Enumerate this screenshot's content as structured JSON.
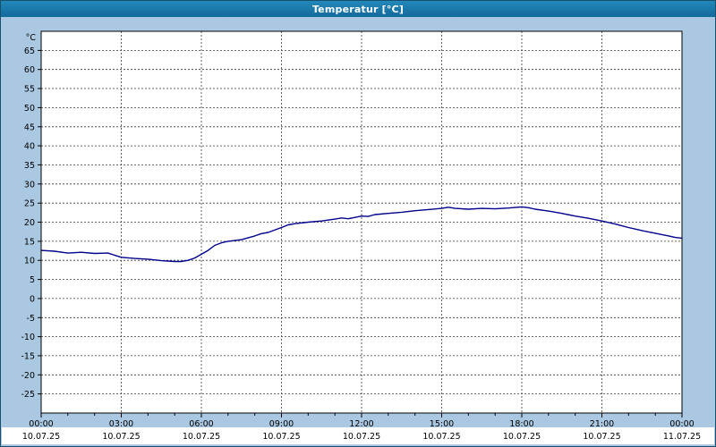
{
  "window": {
    "title": "Temperatur [°C]"
  },
  "chart_data": {
    "type": "line",
    "title": "Temperatur [°C]",
    "xlabel": "",
    "ylabel": "°C",
    "xlim": [
      0,
      24
    ],
    "ylim": [
      -30,
      70
    ],
    "ytick_from": -25,
    "ytick_to": 65,
    "ytick_step": 5,
    "grid": true,
    "legend": "none",
    "background": "#ffffff",
    "frame_color": "#aac8e2",
    "xticks": [
      {
        "h": 0,
        "time": "00:00",
        "date": "10.07.25"
      },
      {
        "h": 3,
        "time": "03:00",
        "date": "10.07.25"
      },
      {
        "h": 6,
        "time": "06:00",
        "date": "10.07.25"
      },
      {
        "h": 9,
        "time": "09:00",
        "date": "10.07.25"
      },
      {
        "h": 12,
        "time": "12:00",
        "date": "10.07.25"
      },
      {
        "h": 15,
        "time": "15:00",
        "date": "10.07.25"
      },
      {
        "h": 18,
        "time": "18:00",
        "date": "10.07.25"
      },
      {
        "h": 21,
        "time": "21:00",
        "date": "10.07.25"
      },
      {
        "h": 24,
        "time": "00:00",
        "date": "11.07.25"
      }
    ],
    "series": [
      {
        "name": "Temperatur",
        "color": "#00008b",
        "x": [
          0,
          0.5,
          1,
          1.5,
          2,
          2.5,
          3,
          3.5,
          4,
          4.5,
          5,
          5.25,
          5.5,
          5.75,
          6,
          6.25,
          6.5,
          6.75,
          7,
          7.5,
          8,
          8.25,
          8.5,
          9,
          9.25,
          9.5,
          10,
          10.5,
          11,
          11.25,
          11.5,
          12,
          12.25,
          12.5,
          13,
          13.5,
          14,
          14.5,
          15,
          15.25,
          15.5,
          16,
          16.5,
          17,
          17.5,
          18,
          18.25,
          18.5,
          19,
          19.5,
          20,
          20.5,
          21,
          21.5,
          22,
          22.5,
          23,
          23.5,
          23.75,
          24
        ],
        "y": [
          12.6,
          12.4,
          11.9,
          12.1,
          11.8,
          11.9,
          10.8,
          10.5,
          10.3,
          9.9,
          9.7,
          9.7,
          10.0,
          10.6,
          11.6,
          12.6,
          13.9,
          14.6,
          15.0,
          15.4,
          16.4,
          17.0,
          17.3,
          18.6,
          19.3,
          19.6,
          20.0,
          20.3,
          20.8,
          21.1,
          20.9,
          21.6,
          21.5,
          22.0,
          22.3,
          22.6,
          23.0,
          23.3,
          23.6,
          23.9,
          23.6,
          23.4,
          23.6,
          23.5,
          23.7,
          24.0,
          23.8,
          23.4,
          22.9,
          22.3,
          21.6,
          21.0,
          20.3,
          19.5,
          18.6,
          17.8,
          17.1,
          16.4,
          16.0,
          15.8
        ]
      }
    ]
  }
}
